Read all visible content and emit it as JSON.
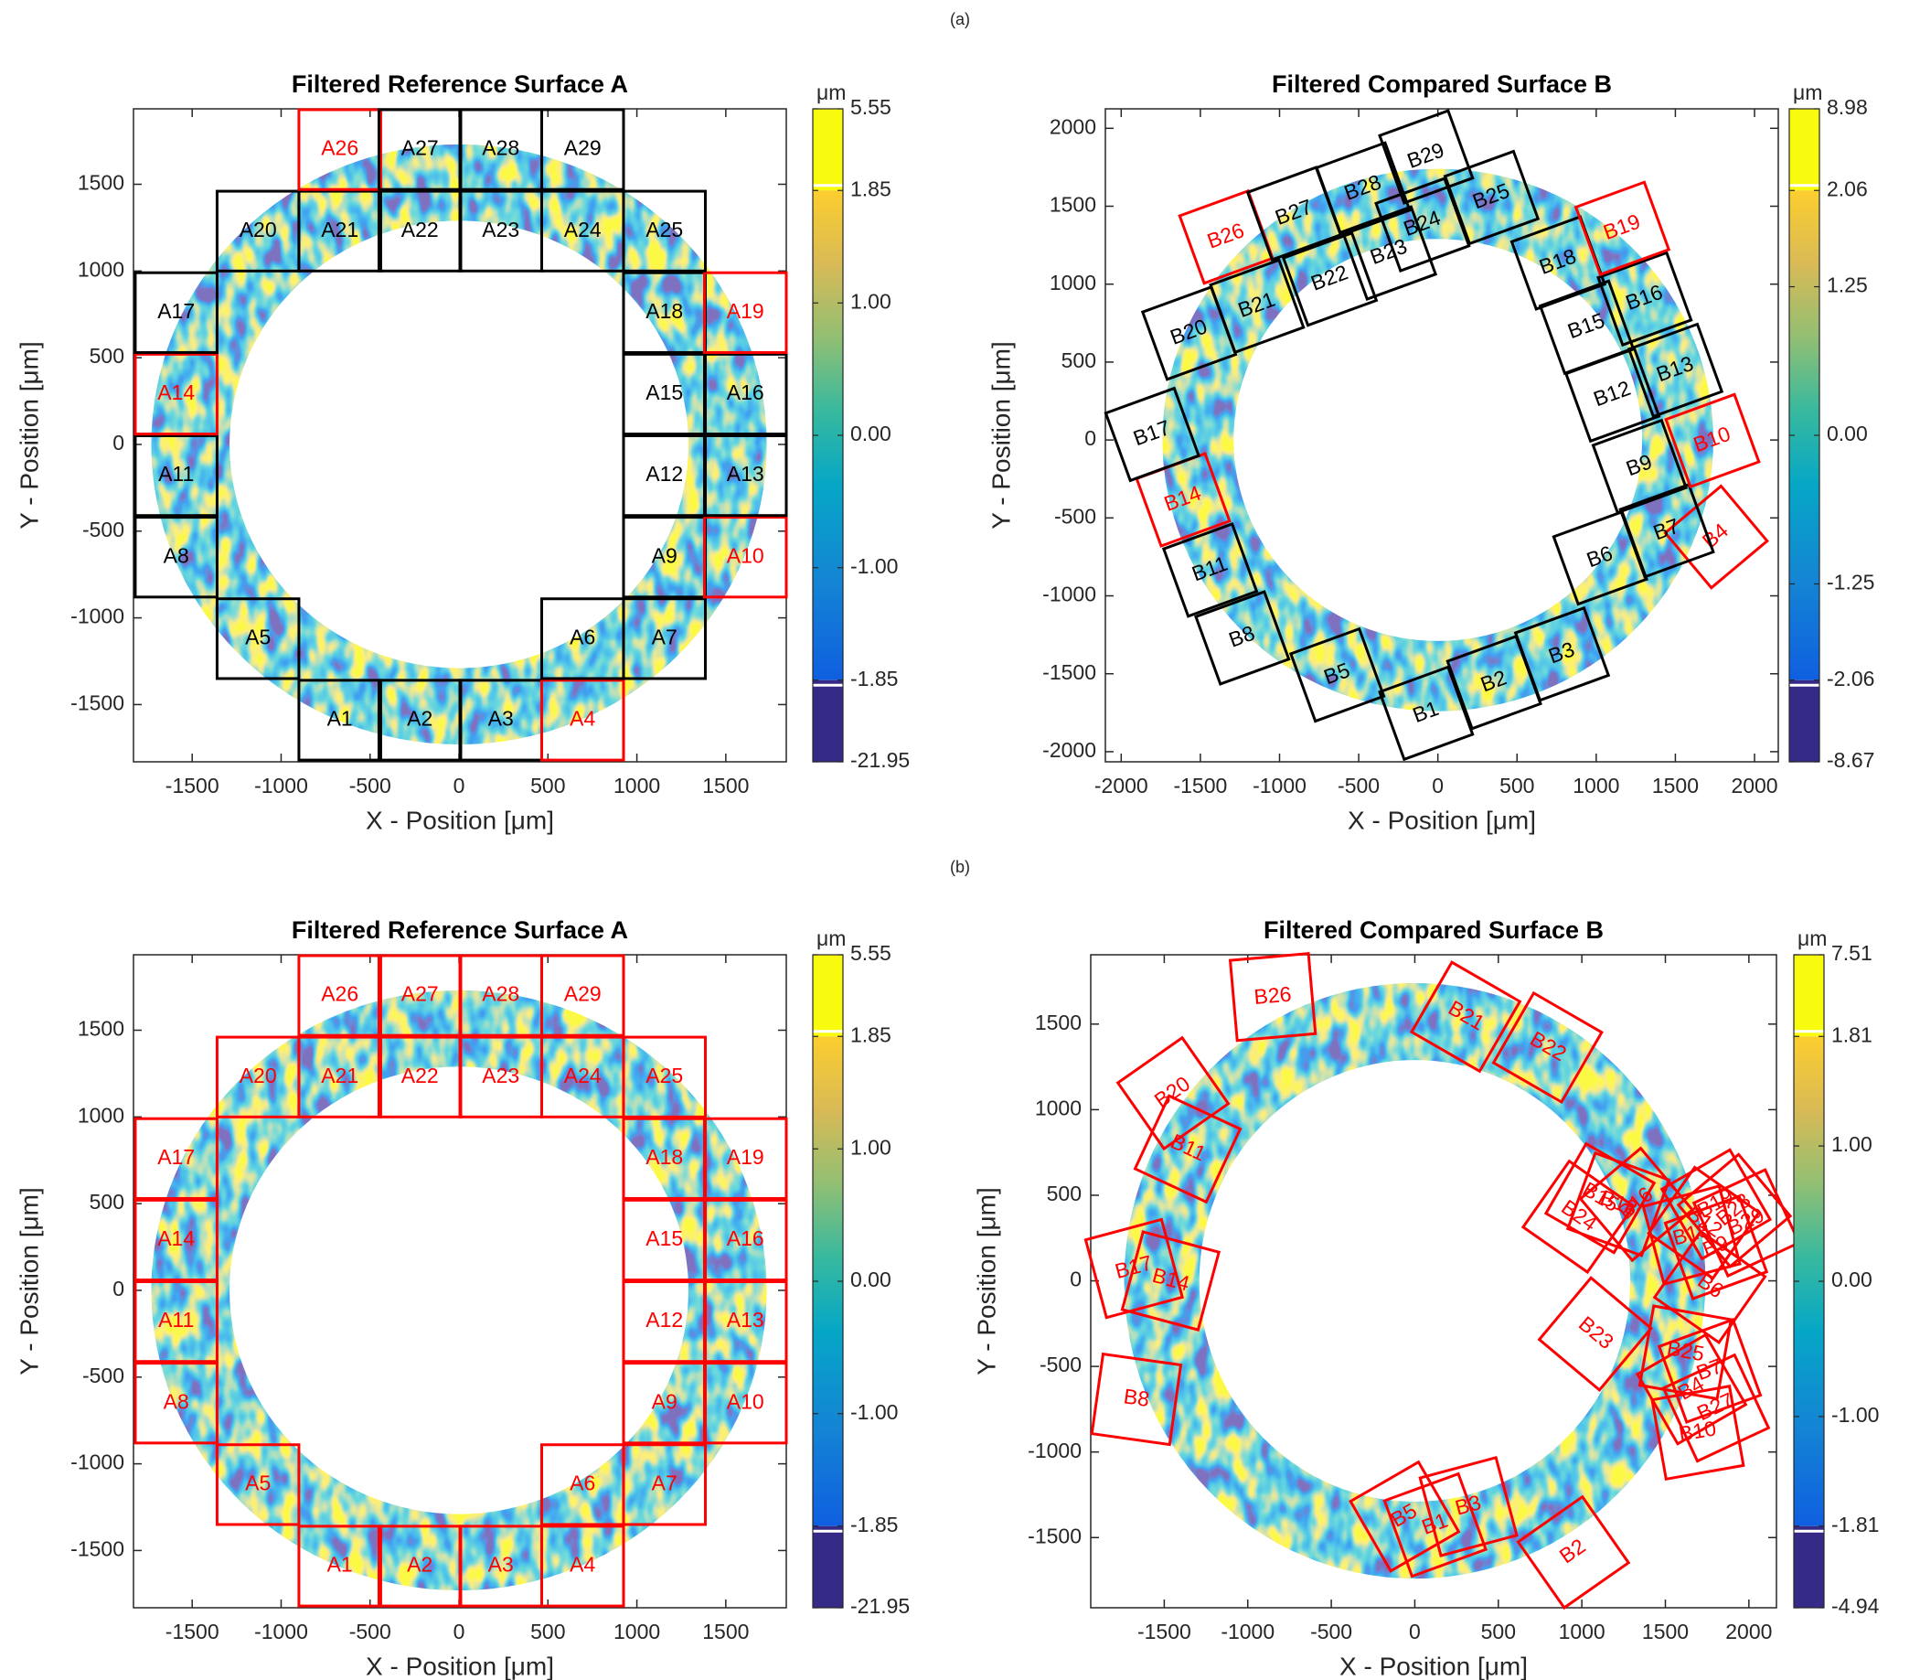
{
  "panel_labels": [
    "(a)",
    "(b)"
  ],
  "chart_data": [
    {
      "type": "surface",
      "title": "Filtered Reference Surface A",
      "xlabel": "X - Position [μm]",
      "ylabel": "Y - Position [μm]",
      "xlim": [
        -1830,
        1840
      ],
      "ylim": [
        -1830,
        1935
      ],
      "xticks": [
        -1500,
        -1000,
        -500,
        0,
        500,
        1000,
        1500
      ],
      "yticks": [
        -1500,
        -1000,
        -500,
        0,
        500,
        1000,
        1500
      ],
      "ring": {
        "x": 0,
        "y": 0,
        "inner": 1290,
        "outer": 1730
      },
      "cell_size": 460,
      "angle": 0,
      "cells": [
        {
          "label": "A1",
          "x": -670,
          "y": -1590,
          "color": "#000000"
        },
        {
          "label": "A2",
          "x": -220,
          "y": -1590,
          "color": "#000000"
        },
        {
          "label": "A3",
          "x": 235,
          "y": -1590,
          "color": "#000000"
        },
        {
          "label": "A4",
          "x": 695,
          "y": -1590,
          "color": "#ff0000"
        },
        {
          "label": "A5",
          "x": -1130,
          "y": -1120,
          "color": "#000000"
        },
        {
          "label": "A6",
          "x": 695,
          "y": -1120,
          "color": "#000000"
        },
        {
          "label": "A7",
          "x": 1155,
          "y": -1120,
          "color": "#000000"
        },
        {
          "label": "A8",
          "x": -1590,
          "y": -650,
          "color": "#000000"
        },
        {
          "label": "A9",
          "x": 1155,
          "y": -650,
          "color": "#000000"
        },
        {
          "label": "A10",
          "x": 1610,
          "y": -650,
          "color": "#ff0000"
        },
        {
          "label": "A11",
          "x": -1590,
          "y": -180,
          "color": "#000000"
        },
        {
          "label": "A12",
          "x": 1155,
          "y": -180,
          "color": "#000000"
        },
        {
          "label": "A13",
          "x": 1610,
          "y": -180,
          "color": "#000000"
        },
        {
          "label": "A14",
          "x": -1590,
          "y": 290,
          "color": "#ff0000"
        },
        {
          "label": "A15",
          "x": 1155,
          "y": 290,
          "color": "#000000"
        },
        {
          "label": "A16",
          "x": 1610,
          "y": 290,
          "color": "#000000"
        },
        {
          "label": "A17",
          "x": -1590,
          "y": 760,
          "color": "#000000"
        },
        {
          "label": "A18",
          "x": 1155,
          "y": 760,
          "color": "#000000"
        },
        {
          "label": "A19",
          "x": 1610,
          "y": 760,
          "color": "#ff0000"
        },
        {
          "label": "A20",
          "x": -1130,
          "y": 1230,
          "color": "#000000"
        },
        {
          "label": "A21",
          "x": -670,
          "y": 1230,
          "color": "#000000"
        },
        {
          "label": "A22",
          "x": -220,
          "y": 1230,
          "color": "#000000"
        },
        {
          "label": "A23",
          "x": 235,
          "y": 1230,
          "color": "#000000"
        },
        {
          "label": "A24",
          "x": 695,
          "y": 1230,
          "color": "#000000"
        },
        {
          "label": "A25",
          "x": 1155,
          "y": 1230,
          "color": "#000000"
        },
        {
          "label": "A26",
          "x": -670,
          "y": 1700,
          "color": "#ff0000"
        },
        {
          "label": "A27",
          "x": -220,
          "y": 1700,
          "color": "#000000"
        },
        {
          "label": "A28",
          "x": 235,
          "y": 1700,
          "color": "#000000"
        },
        {
          "label": "A29",
          "x": 695,
          "y": 1700,
          "color": "#000000"
        }
      ],
      "colorbar": {
        "unit": "μm",
        "lim": [
          -21.95,
          5.55
        ],
        "core": [
          -1.85,
          1.85
        ],
        "ticks": [
          5.55,
          1.85,
          {
            "value": 1,
            "label": "1.00"
          },
          {
            "value": 0,
            "label": "0.00"
          },
          {
            "value": -1,
            "label": "-1.00"
          },
          -1.85,
          -21.95
        ]
      }
    },
    {
      "type": "surface",
      "title": "Filtered Compared Surface B",
      "xlabel": "X - Position [μm]",
      "ylabel": "Y - Position [μm]",
      "xlim": [
        -2100,
        2150
      ],
      "ylim": [
        -2065,
        2125
      ],
      "xticks": [
        -2000,
        -1500,
        -1000,
        -500,
        0,
        500,
        1000,
        1500,
        2000
      ],
      "yticks": [
        -2000,
        -1500,
        -1000,
        -500,
        0,
        500,
        1000,
        1500,
        2000
      ],
      "ring": {
        "x": 0,
        "y": 0,
        "inner": 1290,
        "outer": 1740
      },
      "cell_size": 460,
      "angle": 20,
      "cells": [
        {
          "label": "B1",
          "x": -74,
          "y": -1753,
          "color": "#000000"
        },
        {
          "label": "B2",
          "x": 355,
          "y": -1556,
          "color": "#000000"
        },
        {
          "label": "B3",
          "x": 784,
          "y": -1374,
          "color": "#000000"
        },
        {
          "label": "B4",
          "x": 1758,
          "y": -622,
          "color": "#ff0000",
          "angle": 40
        },
        {
          "label": "B5",
          "x": -635,
          "y": -1508,
          "color": "#000000"
        },
        {
          "label": "B6",
          "x": 1025,
          "y": -757,
          "color": "#000000"
        },
        {
          "label": "B7",
          "x": 1446,
          "y": -582,
          "color": "#000000"
        },
        {
          "label": "B8",
          "x": -1235,
          "y": -1270,
          "color": "#000000"
        },
        {
          "label": "B9",
          "x": 1274,
          "y": -170,
          "color": "#000000"
        },
        {
          "label": "B10",
          "x": 1734,
          "y": -4,
          "color": "#ff0000"
        },
        {
          "label": "B11",
          "x": -1438,
          "y": -835,
          "color": "#000000"
        },
        {
          "label": "B12",
          "x": 1103,
          "y": 289,
          "color": "#000000"
        },
        {
          "label": "B13",
          "x": 1500,
          "y": 447,
          "color": "#000000"
        },
        {
          "label": "B14",
          "x": -1609,
          "y": -384,
          "color": "#ff0000"
        },
        {
          "label": "B15",
          "x": 940,
          "y": 724,
          "color": "#000000"
        },
        {
          "label": "B16",
          "x": 1306,
          "y": 906,
          "color": "#000000"
        },
        {
          "label": "B17",
          "x": -1804,
          "y": 36,
          "color": "#000000"
        },
        {
          "label": "B18",
          "x": 760,
          "y": 1136,
          "color": "#000000"
        },
        {
          "label": "B19",
          "x": 1165,
          "y": 1358,
          "color": "#ff0000"
        },
        {
          "label": "B20",
          "x": -1571,
          "y": 685,
          "color": "#000000"
        },
        {
          "label": "B21",
          "x": -1142,
          "y": 859,
          "color": "#000000"
        },
        {
          "label": "B22",
          "x": -682,
          "y": 1032,
          "color": "#000000"
        },
        {
          "label": "B23",
          "x": -308,
          "y": 1200,
          "color": "#000000"
        },
        {
          "label": "B24",
          "x": -97,
          "y": 1382,
          "color": "#000000"
        },
        {
          "label": "B25",
          "x": 339,
          "y": 1556,
          "color": "#000000"
        },
        {
          "label": "B26",
          "x": -1337,
          "y": 1302,
          "color": "#ff0000"
        },
        {
          "label": "B27",
          "x": -908,
          "y": 1453,
          "color": "#000000"
        },
        {
          "label": "B28",
          "x": -472,
          "y": 1611,
          "color": "#000000"
        },
        {
          "label": "B29",
          "x": -74,
          "y": 1817,
          "color": "#000000"
        }
      ],
      "colorbar": {
        "unit": "μm",
        "lim": [
          -8.67,
          8.98
        ],
        "core": [
          -2.06,
          2.06
        ],
        "ticks": [
          8.98,
          2.06,
          1.25,
          {
            "value": 0,
            "label": "0.00"
          },
          -1.25,
          -2.06,
          -8.67
        ]
      }
    },
    {
      "type": "surface",
      "title": "Filtered Reference Surface A",
      "xlabel": "X - Position [μm]",
      "ylabel": "Y - Position [μm]",
      "xlim": [
        -1830,
        1840
      ],
      "ylim": [
        -1830,
        1935
      ],
      "xticks": [
        -1500,
        -1000,
        -500,
        0,
        500,
        1000,
        1500
      ],
      "yticks": [
        -1500,
        -1000,
        -500,
        0,
        500,
        1000,
        1500
      ],
      "ring": {
        "x": 0,
        "y": 0,
        "inner": 1290,
        "outer": 1730
      },
      "cell_size": 460,
      "angle": 0,
      "cells": [
        {
          "label": "A1",
          "x": -670,
          "y": -1590,
          "color": "#ff0000"
        },
        {
          "label": "A2",
          "x": -220,
          "y": -1590,
          "color": "#ff0000"
        },
        {
          "label": "A3",
          "x": 235,
          "y": -1590,
          "color": "#ff0000"
        },
        {
          "label": "A4",
          "x": 695,
          "y": -1590,
          "color": "#ff0000"
        },
        {
          "label": "A5",
          "x": -1130,
          "y": -1120,
          "color": "#ff0000"
        },
        {
          "label": "A6",
          "x": 695,
          "y": -1120,
          "color": "#ff0000"
        },
        {
          "label": "A7",
          "x": 1155,
          "y": -1120,
          "color": "#ff0000"
        },
        {
          "label": "A8",
          "x": -1590,
          "y": -650,
          "color": "#ff0000"
        },
        {
          "label": "A9",
          "x": 1155,
          "y": -650,
          "color": "#ff0000"
        },
        {
          "label": "A10",
          "x": 1610,
          "y": -650,
          "color": "#ff0000"
        },
        {
          "label": "A11",
          "x": -1590,
          "y": -180,
          "color": "#ff0000"
        },
        {
          "label": "A12",
          "x": 1155,
          "y": -180,
          "color": "#ff0000"
        },
        {
          "label": "A13",
          "x": 1610,
          "y": -180,
          "color": "#ff0000"
        },
        {
          "label": "A14",
          "x": -1590,
          "y": 290,
          "color": "#ff0000"
        },
        {
          "label": "A15",
          "x": 1155,
          "y": 290,
          "color": "#ff0000"
        },
        {
          "label": "A16",
          "x": 1610,
          "y": 290,
          "color": "#ff0000"
        },
        {
          "label": "A17",
          "x": -1590,
          "y": 760,
          "color": "#ff0000"
        },
        {
          "label": "A18",
          "x": 1155,
          "y": 760,
          "color": "#ff0000"
        },
        {
          "label": "A19",
          "x": 1610,
          "y": 760,
          "color": "#ff0000"
        },
        {
          "label": "A20",
          "x": -1130,
          "y": 1230,
          "color": "#ff0000"
        },
        {
          "label": "A21",
          "x": -670,
          "y": 1230,
          "color": "#ff0000"
        },
        {
          "label": "A22",
          "x": -220,
          "y": 1230,
          "color": "#ff0000"
        },
        {
          "label": "A23",
          "x": 235,
          "y": 1230,
          "color": "#ff0000"
        },
        {
          "label": "A24",
          "x": 695,
          "y": 1230,
          "color": "#ff0000"
        },
        {
          "label": "A25",
          "x": 1155,
          "y": 1230,
          "color": "#ff0000"
        },
        {
          "label": "A26",
          "x": -670,
          "y": 1700,
          "color": "#ff0000"
        },
        {
          "label": "A27",
          "x": -220,
          "y": 1700,
          "color": "#ff0000"
        },
        {
          "label": "A28",
          "x": 235,
          "y": 1700,
          "color": "#ff0000"
        },
        {
          "label": "A29",
          "x": 695,
          "y": 1700,
          "color": "#ff0000"
        }
      ],
      "colorbar": {
        "unit": "μm",
        "lim": [
          -21.95,
          5.55
        ],
        "core": [
          -1.85,
          1.85
        ],
        "ticks": [
          5.55,
          1.85,
          {
            "value": 1,
            "label": "1.00"
          },
          {
            "value": 0,
            "label": "0.00"
          },
          {
            "value": -1,
            "label": "-1.00"
          },
          -1.85,
          -21.95
        ]
      }
    },
    {
      "type": "surface",
      "title": "Filtered Compared Surface B",
      "xlabel": "X - Position [μm]",
      "ylabel": "Y - Position [μm]",
      "xlim": [
        -1940,
        2165
      ],
      "ylim": [
        -1910,
        1905
      ],
      "xticks": [
        -1500,
        -1000,
        -500,
        0,
        500,
        1000,
        1500,
        2000
      ],
      "yticks": [
        -1500,
        -1000,
        -500,
        0,
        500,
        1000,
        1500
      ],
      "ring": {
        "x": 0,
        "y": 0,
        "inner": 1290,
        "outer": 1740
      },
      "cell_size": 470,
      "angle": 0,
      "cells": [
        {
          "label": "B26",
          "x": -850,
          "y": 1658,
          "color": "#ff0000",
          "angle": 5
        },
        {
          "label": "B21",
          "x": 305,
          "y": 1543,
          "color": "#ff0000",
          "angle": -30
        },
        {
          "label": "B22",
          "x": 795,
          "y": 1363,
          "color": "#ff0000",
          "angle": -30
        },
        {
          "label": "B20",
          "x": -1447,
          "y": 1096,
          "color": "#ff0000",
          "angle": 35
        },
        {
          "label": "B11",
          "x": -1360,
          "y": 771,
          "color": "#ff0000",
          "angle": -25
        },
        {
          "label": "B17",
          "x": -1681,
          "y": 72,
          "color": "#ff0000",
          "angle": 15
        },
        {
          "label": "B14",
          "x": -1462,
          "y": 0,
          "color": "#ff0000",
          "angle": -15
        },
        {
          "label": "B8",
          "x": -1667,
          "y": -692,
          "color": "#ff0000",
          "angle": -8
        },
        {
          "label": "B5",
          "x": -61,
          "y": -1377,
          "color": "#ff0000",
          "angle": 30
        },
        {
          "label": "B3",
          "x": 321,
          "y": -1319,
          "color": "#ff0000",
          "angle": 15
        },
        {
          "label": "B1",
          "x": 122,
          "y": -1427,
          "color": "#ff0000",
          "angle": 20
        },
        {
          "label": "B2",
          "x": 949,
          "y": -1586,
          "color": "#ff0000",
          "angle": 35
        },
        {
          "label": "B23",
          "x": 1080,
          "y": -310,
          "color": "#ff0000",
          "angle": -40
        },
        {
          "label": "B24",
          "x": 979,
          "y": 375,
          "color": "#ff0000",
          "angle": -35
        },
        {
          "label": "B15",
          "x": 1109,
          "y": 483,
          "color": "#ff0000",
          "angle": -30
        },
        {
          "label": "B18",
          "x": 1219,
          "y": 447,
          "color": "#ff0000",
          "angle": -20
        },
        {
          "label": "B16",
          "x": 1327,
          "y": 447,
          "color": "#ff0000",
          "angle": 40
        },
        {
          "label": "B19",
          "x": 1803,
          "y": 447,
          "color": "#ff0000",
          "angle": 30
        },
        {
          "label": "B28",
          "x": 1913,
          "y": 411,
          "color": "#ff0000",
          "angle": 40
        },
        {
          "label": "B29",
          "x": 1986,
          "y": 339,
          "color": "#ff0000",
          "angle": 25
        },
        {
          "label": "B12",
          "x": 1730,
          "y": 339,
          "color": "#ff0000",
          "angle": -35
        },
        {
          "label": "B13",
          "x": 1657,
          "y": 267,
          "color": "#ff0000",
          "angle": 15
        },
        {
          "label": "B9",
          "x": 1803,
          "y": 195,
          "color": "#ff0000",
          "angle": 20
        },
        {
          "label": "B6",
          "x": 1766,
          "y": -36,
          "color": "#ff0000",
          "angle": -35
        },
        {
          "label": "B25",
          "x": 1620,
          "y": -418,
          "color": "#ff0000",
          "angle": -10
        },
        {
          "label": "B7",
          "x": 1766,
          "y": -526,
          "color": "#ff0000",
          "angle": 20
        },
        {
          "label": "B4",
          "x": 1657,
          "y": -634,
          "color": "#ff0000",
          "angle": 30
        },
        {
          "label": "B27",
          "x": 1803,
          "y": -743,
          "color": "#ff0000",
          "angle": 25
        },
        {
          "label": "B10",
          "x": 1694,
          "y": -887,
          "color": "#ff0000",
          "angle": 10
        }
      ],
      "colorbar": {
        "unit": "μm",
        "lim": [
          -4.94,
          7.51
        ],
        "core": [
          -1.81,
          1.81
        ],
        "ticks": [
          7.51,
          1.81,
          {
            "value": 1,
            "label": "1.00"
          },
          {
            "value": 0,
            "label": "0.00"
          },
          {
            "value": -1,
            "label": "-1.00"
          },
          -1.81,
          -4.94
        ]
      }
    }
  ]
}
